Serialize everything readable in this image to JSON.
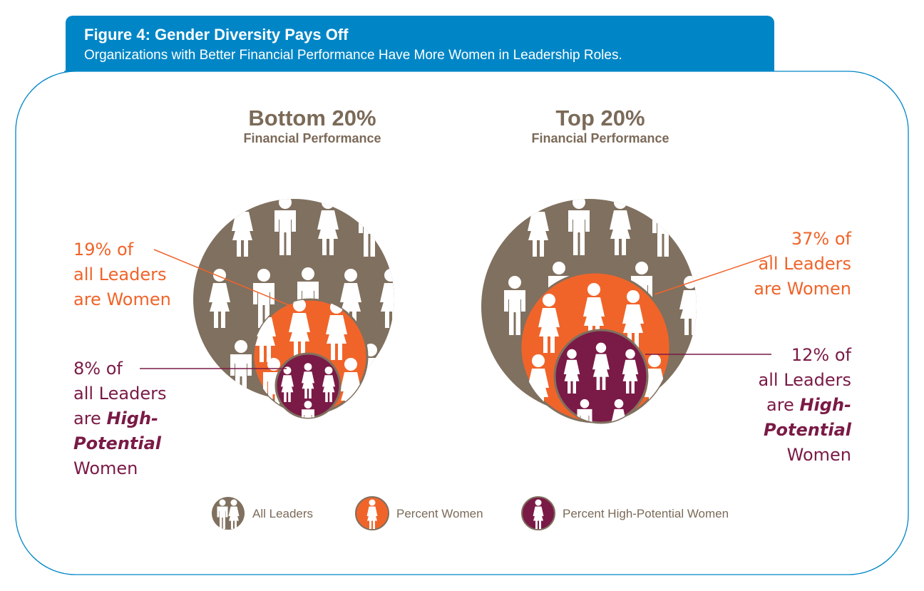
{
  "header": {
    "title": "Figure 4: Gender Diversity Pays Off",
    "subtitle": "Organizations with Better Financial Performance Have More Women in Leadership Roles."
  },
  "colors": {
    "all_leaders": "#80705f",
    "percent_women": "#f0642a",
    "percent_hp_women": "#7a1a46",
    "header": "#0086c6"
  },
  "chart_data": {
    "type": "nested-circles",
    "series": [
      {
        "name": "All Leaders",
        "color": "#80705f"
      },
      {
        "name": "Percent Women",
        "color": "#f0642a"
      },
      {
        "name": "Percent High-Potential Women",
        "color": "#7a1a46"
      }
    ],
    "groups": [
      {
        "title": "Bottom 20%",
        "subtitle": "Financial Performance",
        "percent_women": 19,
        "percent_hp_women": 8,
        "women_callout": {
          "line1": "19% of",
          "line2": "all Leaders",
          "line3": "are Women"
        },
        "hp_callout": {
          "line1": "8% of",
          "line2": "all Leaders",
          "line3_pre": "are ",
          "line3_em": "High-",
          "line4_em": "Potential",
          "line5": "Women"
        }
      },
      {
        "title": "Top 20%",
        "subtitle": "Financial Performance",
        "percent_women": 37,
        "percent_hp_women": 12,
        "women_callout": {
          "line1": "37% of",
          "line2": "all Leaders",
          "line3": "are Women"
        },
        "hp_callout": {
          "line1": "12% of",
          "line2": "all Leaders",
          "line3_pre": "are ",
          "line3_em": "High-",
          "line4_em": "Potential",
          "line5": "Women"
        }
      }
    ]
  },
  "legend": [
    {
      "label": "All Leaders",
      "icon": "two-people-icon"
    },
    {
      "label": "Percent Women",
      "icon": "woman-icon"
    },
    {
      "label": "Percent High-Potential Women",
      "icon": "woman-icon"
    }
  ]
}
